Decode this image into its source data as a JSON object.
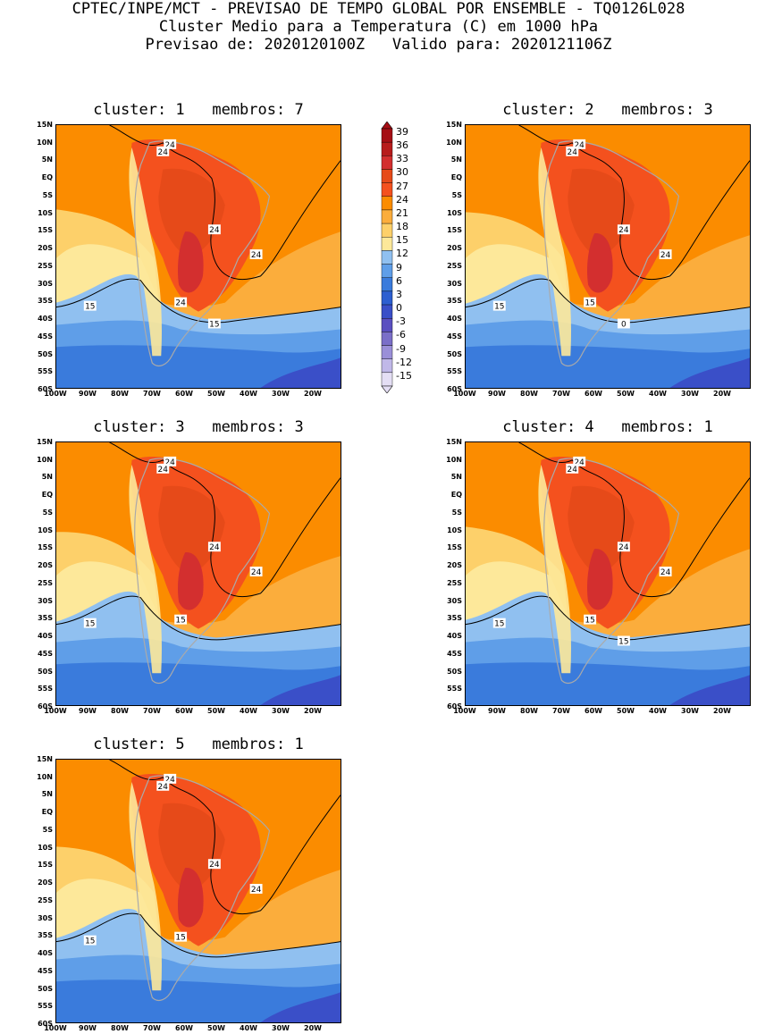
{
  "header": {
    "line1": "CPTEC/INPE/MCT - PREVISAO DE TEMPO GLOBAL POR ENSEMBLE - TQ0126L028",
    "line2": "Cluster Medio para a Temperatura (C) em 1000 hPa",
    "line3": "Previsao de: 2020120100Z   Valido para: 2020121106Z"
  },
  "y_ticks": [
    "15N",
    "10N",
    "5N",
    "EQ",
    "5S",
    "10S",
    "15S",
    "20S",
    "25S",
    "30S",
    "35S",
    "40S",
    "45S",
    "50S",
    "55S",
    "60S"
  ],
  "x_ticks": [
    "100W",
    "90W",
    "80W",
    "70W",
    "60W",
    "50W",
    "40W",
    "30W",
    "20W"
  ],
  "colorbar": {
    "levels": [
      "39",
      "36",
      "33",
      "30",
      "27",
      "24",
      "21",
      "18",
      "15",
      "12",
      "9",
      "6",
      "3",
      "0",
      "-3",
      "-6",
      "-9",
      "-12",
      "-15"
    ],
    "colors": [
      "#a50f15",
      "#b71c1c",
      "#d32f2f",
      "#e64a19",
      "#f4511e",
      "#fb8c00",
      "#fbad3c",
      "#fdd06a",
      "#fde89a",
      "#90c0f0",
      "#5f9ee8",
      "#3a7bdc",
      "#2d5fd0",
      "#3a4fc8",
      "#5a4fc0",
      "#7a6fc8",
      "#9a8fd8",
      "#c0b8e8",
      "#e4def4"
    ],
    "extend": "both"
  },
  "panels": [
    {
      "title": "cluster: 1   membros: 7",
      "contour_labels": [
        "24",
        "24",
        "24",
        "24",
        "24",
        "15",
        "15"
      ]
    },
    {
      "title": "cluster: 2   membros: 3",
      "contour_labels": [
        "24",
        "24",
        "24",
        "24",
        "15",
        "15",
        "0"
      ]
    },
    {
      "title": "cluster: 3   membros: 3",
      "contour_labels": [
        "24",
        "24",
        "24",
        "24",
        "15",
        "15"
      ]
    },
    {
      "title": "cluster: 4   membros: 1",
      "contour_labels": [
        "24",
        "24",
        "24",
        "24",
        "15",
        "15",
        "15"
      ]
    },
    {
      "title": "cluster: 5   membros: 1",
      "contour_labels": [
        "24",
        "24",
        "24",
        "24",
        "15",
        "15"
      ]
    }
  ]
}
